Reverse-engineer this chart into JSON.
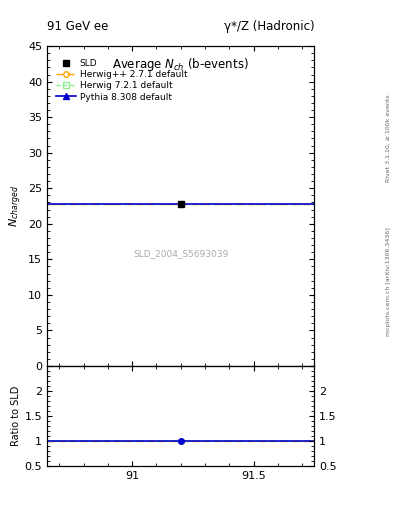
{
  "title_left": "91 GeV ee",
  "title_right": "γ*/Z (Hadronic)",
  "plot_title": "Average N_{ch} (b-events)",
  "ylabel_main": "N_{charged}",
  "ylabel_ratio": "Ratio to SLD",
  "right_label_top": "Rivet 3.1.10, ≥ 100k events",
  "right_label_bottom": "mcplots.cern.ch [arXiv:1306.3436]",
  "watermark": "SLD_2004_S5693039",
  "xlim": [
    90.65,
    91.75
  ],
  "ylim_main": [
    0,
    45
  ],
  "ylim_ratio": [
    0.5,
    2.5
  ],
  "yticks_main": [
    0,
    5,
    10,
    15,
    20,
    25,
    30,
    35,
    40,
    45
  ],
  "yticks_ratio": [
    0.5,
    1.0,
    1.5,
    2.0,
    2.5
  ],
  "xticks": [
    91.0,
    91.5
  ],
  "data_x": 91.2,
  "sld_value": 22.8,
  "sld_err": 0.3,
  "herwig_pp_value": 22.75,
  "herwig_72_value": 22.75,
  "pythia_value": 22.75,
  "line_xmin": 90.65,
  "line_xmax": 91.75,
  "color_herwig_pp": "#FFA500",
  "color_herwig_72": "#90EE90",
  "color_pythia": "#0000CD",
  "color_sld": "#000000",
  "legend_labels": [
    "SLD",
    "Herwig++ 2.7.1 default",
    "Herwig 7.2.1 default",
    "Pythia 8.308 default"
  ],
  "background_color": "#ffffff",
  "grid_color": "#bbbbbb"
}
